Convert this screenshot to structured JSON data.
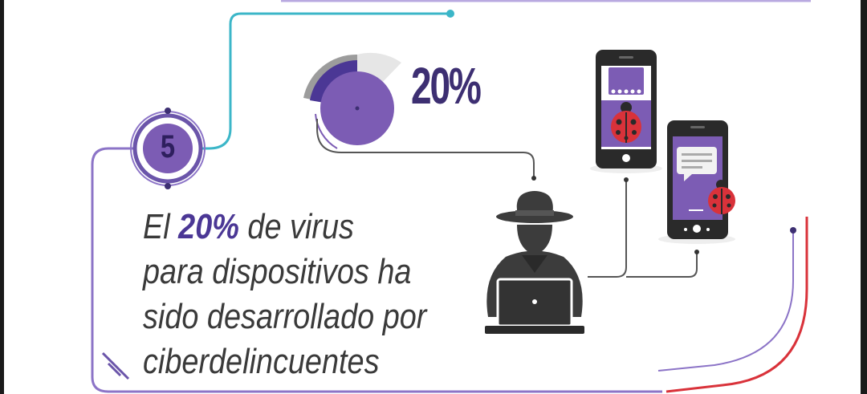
{
  "infographic": {
    "step_number": "5",
    "stat_value": "20%",
    "fact": {
      "line1_before": "El ",
      "line1_highlight": "20%",
      "line1_after": " de virus",
      "line2": "para dispositivos ha",
      "line3": "sido desarrollado por",
      "line4": "ciberdelincuentes"
    }
  },
  "colors": {
    "purple_dark": "#3d2f72",
    "purple": "#7c5cb4",
    "teal": "#3bb6c8",
    "red": "#d9323a",
    "gray": "#444444"
  },
  "icons": [
    "pie-gauge-icon",
    "hacker-icon",
    "laptop-icon",
    "smartphone-icon",
    "ladybug-icon",
    "chat-bubble-icon"
  ]
}
